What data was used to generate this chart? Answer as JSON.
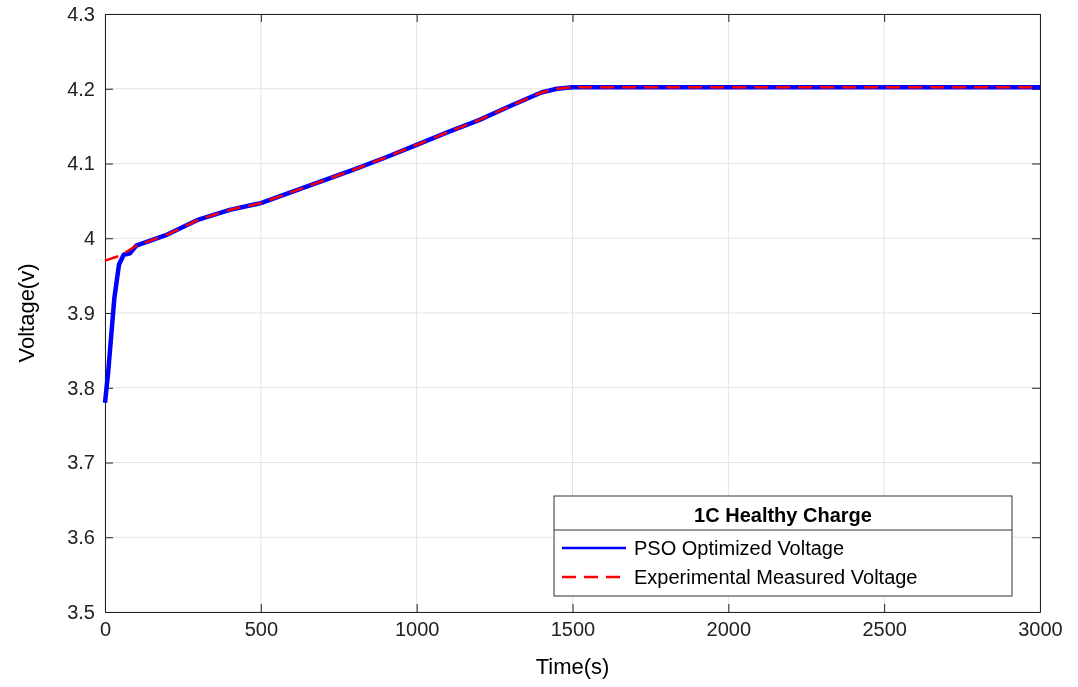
{
  "chart_data": {
    "type": "line",
    "xlabel": "Time(s)",
    "ylabel": "Voltage(v)",
    "legend_title": "1C Healthy Charge",
    "legend": "bottom right",
    "grid": true,
    "xlim": [
      0,
      3000
    ],
    "xticks": [
      0,
      500,
      1000,
      1500,
      2000,
      2500,
      3000
    ],
    "ylim": [
      3.5,
      4.3
    ],
    "yticks": [
      3.5,
      3.6,
      3.7,
      3.8,
      3.9,
      4,
      4.1,
      4.2,
      4.3
    ],
    "series": [
      {
        "name": "PSO Optimized Voltage",
        "color": "#0000ff",
        "line_style": "solid",
        "x": [
          0,
          10,
          20,
          30,
          45,
          60,
          80,
          100,
          200,
          300,
          400,
          500,
          600,
          700,
          800,
          900,
          1000,
          1100,
          1200,
          1300,
          1400,
          1450,
          1500,
          2000,
          2500,
          3000
        ],
        "values": [
          3.78,
          3.82,
          3.87,
          3.92,
          3.965,
          3.978,
          3.98,
          3.99,
          4.005,
          4.025,
          4.038,
          4.047,
          4.062,
          4.077,
          4.092,
          4.108,
          4.125,
          4.142,
          4.158,
          4.177,
          4.195,
          4.2,
          4.202,
          4.202,
          4.202,
          4.202
        ]
      },
      {
        "name": "Experimental Measured Voltage",
        "color": "#ff0000",
        "line_style": "dashed",
        "x": [
          0,
          50,
          100,
          200,
          300,
          400,
          500,
          600,
          700,
          800,
          900,
          1000,
          1100,
          1200,
          1300,
          1400,
          1450,
          1500,
          2000,
          2500,
          3000
        ],
        "values": [
          3.97,
          3.977,
          3.99,
          4.005,
          4.025,
          4.038,
          4.047,
          4.062,
          4.077,
          4.092,
          4.108,
          4.125,
          4.142,
          4.158,
          4.177,
          4.195,
          4.2,
          4.202,
          4.202,
          4.202,
          4.202
        ]
      }
    ]
  }
}
